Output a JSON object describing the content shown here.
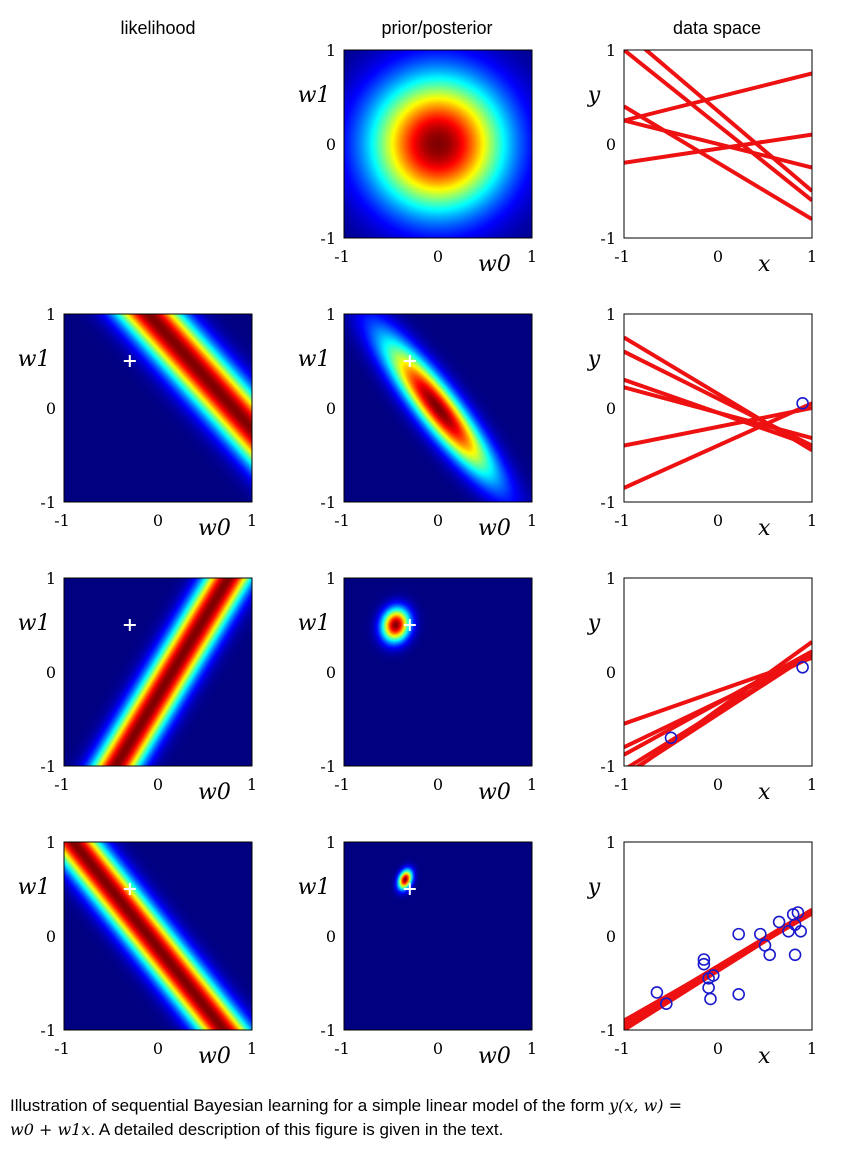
{
  "column_titles": [
    "likelihood",
    "prior/posterior",
    "data space"
  ],
  "caption": {
    "lead": "Illustration of sequential Bayesian learning for a simple linear model of the form ",
    "formula_lhs": "y(x, w) =",
    "formula_rhs": "w0 + w1x",
    "tail": ". A detailed description of this figure is given in the text."
  },
  "axis_labels": {
    "param_x": "w0",
    "param_y": "w1",
    "data_x": "x",
    "data_y": "y"
  },
  "ticks": [
    "-1",
    "0",
    "1"
  ],
  "true_params": {
    "w0": -0.3,
    "w1": 0.5
  },
  "colors": {
    "line": "#ee1111",
    "point": "#1a1acc",
    "cross": "#ffffff",
    "colormap": "jet"
  },
  "chart_data": [
    {
      "row": 1,
      "likelihood": null,
      "distribution": {
        "type": "heatmap",
        "mean": [
          0,
          0
        ],
        "sd": [
          0.5,
          0.5
        ],
        "corr": 0,
        "xlim": [
          -1,
          1
        ],
        "ylim": [
          -1,
          1
        ]
      },
      "data_space": {
        "type": "line",
        "xlim": [
          -1,
          1
        ],
        "ylim": [
          -1,
          1
        ],
        "lines": [
          {
            "w0": 0.5,
            "w1": 0.25
          },
          {
            "w0": -0.2,
            "w1": -0.6
          },
          {
            "w0": -0.05,
            "w1": 0.15
          },
          {
            "w0": 0.2,
            "w1": -0.8
          },
          {
            "w0": 0.35,
            "w1": -0.85
          },
          {
            "w0": 0.0,
            "w1": -0.25
          }
        ],
        "points": []
      }
    },
    {
      "row": 2,
      "likelihood": {
        "type": "heatmap",
        "a": 1,
        "b": 0.9,
        "c": -0.8,
        "width": 0.18,
        "xlim": [
          -1,
          1
        ],
        "ylim": [
          -1,
          1
        ]
      },
      "distribution": {
        "type": "heatmap",
        "mean": [
          0,
          0
        ],
        "sd": [
          0.4,
          0.5
        ],
        "corr": -0.9,
        "xlim": [
          -1,
          1
        ],
        "ylim": [
          -1,
          1
        ]
      },
      "data_space": {
        "type": "line",
        "xlim": [
          -1,
          1
        ],
        "ylim": [
          -1,
          1
        ],
        "lines": [
          {
            "w0": 0.15,
            "w1": -0.6
          },
          {
            "w0": 0.1,
            "w1": -0.5
          },
          {
            "w0": -0.05,
            "w1": -0.27
          },
          {
            "w0": -0.05,
            "w1": -0.35
          },
          {
            "w0": -0.4,
            "w1": 0.45
          },
          {
            "w0": -0.2,
            "w1": 0.2
          }
        ],
        "points": [
          {
            "x": 0.9,
            "y": 0.05
          }
        ]
      }
    },
    {
      "row": 3,
      "likelihood": {
        "type": "heatmap",
        "a": 1,
        "b": -0.6,
        "c": -0.15,
        "width": 0.15,
        "xlim": [
          -1,
          1
        ],
        "ylim": [
          -1,
          1
        ]
      },
      "distribution": {
        "type": "heatmap",
        "mean": [
          -0.45,
          0.5
        ],
        "sd": [
          0.1,
          0.12
        ],
        "corr": 0.1,
        "xlim": [
          -1,
          1
        ],
        "ylim": [
          -1,
          1
        ]
      },
      "data_space": {
        "type": "line",
        "xlim": [
          -1,
          1
        ],
        "ylim": [
          -1,
          1
        ],
        "lines": [
          {
            "w0": -0.45,
            "w1": 0.65
          },
          {
            "w0": -0.42,
            "w1": 0.62
          },
          {
            "w0": -0.4,
            "w1": 0.72
          },
          {
            "w0": -0.33,
            "w1": 0.55
          },
          {
            "w0": -0.2,
            "w1": 0.35
          },
          {
            "w0": -0.32,
            "w1": 0.48
          }
        ],
        "points": [
          {
            "x": 0.9,
            "y": 0.05
          },
          {
            "x": -0.5,
            "y": -0.7
          }
        ]
      }
    },
    {
      "row": 4,
      "likelihood": {
        "type": "heatmap",
        "a": 1,
        "b": 0.8,
        "c": 0.1,
        "width": 0.15,
        "xlim": [
          -1,
          1
        ],
        "ylim": [
          -1,
          1
        ]
      },
      "distribution": {
        "type": "heatmap",
        "mean": [
          -0.35,
          0.6
        ],
        "sd": [
          0.05,
          0.07
        ],
        "corr": 0.3,
        "xlim": [
          -1,
          1
        ],
        "ylim": [
          -1,
          1
        ]
      },
      "data_space": {
        "type": "line",
        "xlim": [
          -1,
          1
        ],
        "ylim": [
          -1,
          1
        ],
        "lines": [
          {
            "w0": -0.35,
            "w1": 0.6
          },
          {
            "w0": -0.34,
            "w1": 0.58
          },
          {
            "w0": -0.36,
            "w1": 0.62
          },
          {
            "w0": -0.33,
            "w1": 0.57
          },
          {
            "w0": -0.37,
            "w1": 0.63
          },
          {
            "w0": -0.32,
            "w1": 0.6
          }
        ],
        "points": [
          {
            "x": -0.65,
            "y": -0.6
          },
          {
            "x": -0.55,
            "y": -0.72
          },
          {
            "x": -0.15,
            "y": -0.3
          },
          {
            "x": -0.15,
            "y": -0.25
          },
          {
            "x": -0.1,
            "y": -0.45
          },
          {
            "x": -0.1,
            "y": -0.55
          },
          {
            "x": -0.05,
            "y": -0.42
          },
          {
            "x": -0.08,
            "y": -0.67
          },
          {
            "x": 0.22,
            "y": 0.02
          },
          {
            "x": 0.22,
            "y": -0.62
          },
          {
            "x": 0.45,
            "y": 0.02
          },
          {
            "x": 0.5,
            "y": -0.1
          },
          {
            "x": 0.55,
            "y": -0.2
          },
          {
            "x": 0.65,
            "y": 0.15
          },
          {
            "x": 0.75,
            "y": 0.05
          },
          {
            "x": 0.8,
            "y": 0.23
          },
          {
            "x": 0.85,
            "y": 0.25
          },
          {
            "x": 0.82,
            "y": 0.12
          },
          {
            "x": 0.88,
            "y": 0.05
          },
          {
            "x": 0.82,
            "y": -0.2
          }
        ]
      }
    }
  ]
}
